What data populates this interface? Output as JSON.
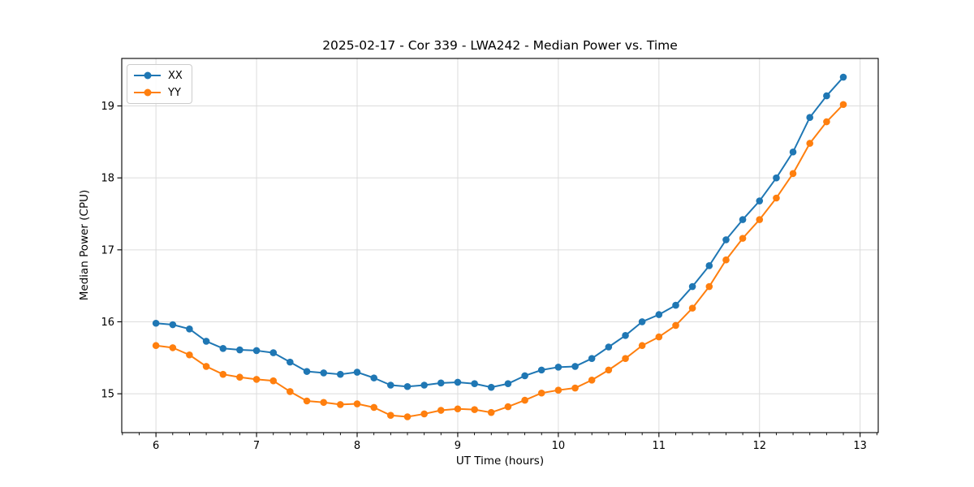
{
  "chart_data": {
    "type": "line",
    "title": "2025-02-17 - Cor 339 - LWA242 - Median Power vs. Time",
    "xlabel": "UT Time (hours)",
    "ylabel": "Median Power (CPU)",
    "xlim": [
      5.66,
      13.18
    ],
    "ylim": [
      14.46,
      19.66
    ],
    "x_major_ticks": [
      6,
      7,
      8,
      9,
      10,
      11,
      12,
      13
    ],
    "x_minor_tick_step": 0.166667,
    "y_major_ticks": [
      15,
      16,
      17,
      18,
      19
    ],
    "grid": true,
    "legend_position": "upper-left",
    "x": [
      6.0,
      6.167,
      6.333,
      6.5,
      6.667,
      6.833,
      7.0,
      7.167,
      7.333,
      7.5,
      7.667,
      7.833,
      8.0,
      8.167,
      8.333,
      8.5,
      8.667,
      8.833,
      9.0,
      9.167,
      9.333,
      9.5,
      9.667,
      9.833,
      10.0,
      10.167,
      10.333,
      10.5,
      10.667,
      10.833,
      11.0,
      11.167,
      11.333,
      11.5,
      11.667,
      11.833,
      12.0,
      12.167,
      12.333,
      12.5,
      12.667,
      12.833
    ],
    "series": [
      {
        "name": "XX",
        "color": "#1f77b4",
        "values": [
          15.98,
          15.96,
          15.9,
          15.73,
          15.63,
          15.61,
          15.6,
          15.57,
          15.44,
          15.31,
          15.29,
          15.27,
          15.3,
          15.22,
          15.12,
          15.1,
          15.12,
          15.15,
          15.16,
          15.14,
          15.09,
          15.14,
          15.25,
          15.33,
          15.37,
          15.38,
          15.49,
          15.65,
          15.81,
          16.0,
          16.1,
          16.23,
          16.49,
          16.78,
          17.14,
          17.42,
          17.68,
          18.0,
          18.36,
          18.84,
          19.14,
          19.4
        ]
      },
      {
        "name": "YY",
        "color": "#ff7f0e",
        "values": [
          15.67,
          15.64,
          15.54,
          15.38,
          15.27,
          15.23,
          15.2,
          15.18,
          15.03,
          14.9,
          14.88,
          14.85,
          14.86,
          14.81,
          14.7,
          14.68,
          14.72,
          14.77,
          14.79,
          14.78,
          14.74,
          14.82,
          14.91,
          15.01,
          15.05,
          15.08,
          15.19,
          15.33,
          15.49,
          15.67,
          15.79,
          15.95,
          16.19,
          16.49,
          16.86,
          17.16,
          17.42,
          17.72,
          18.06,
          18.48,
          18.78,
          19.02
        ]
      }
    ]
  }
}
